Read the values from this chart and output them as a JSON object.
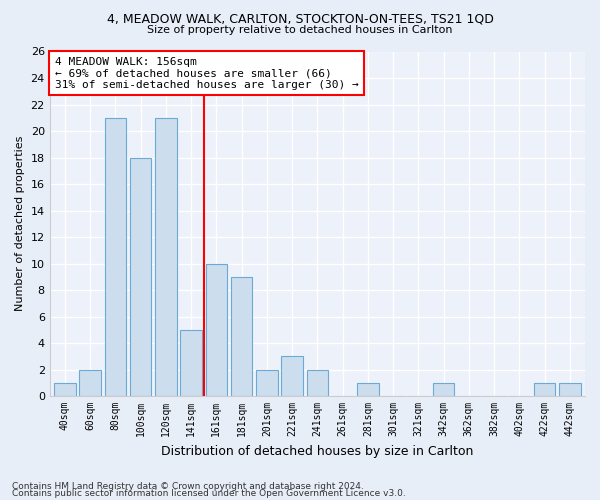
{
  "title1": "4, MEADOW WALK, CARLTON, STOCKTON-ON-TEES, TS21 1QD",
  "title2": "Size of property relative to detached houses in Carlton",
  "xlabel": "Distribution of detached houses by size in Carlton",
  "ylabel": "Number of detached properties",
  "bar_labels": [
    "40sqm",
    "60sqm",
    "80sqm",
    "100sqm",
    "120sqm",
    "141sqm",
    "161sqm",
    "181sqm",
    "201sqm",
    "221sqm",
    "241sqm",
    "261sqm",
    "281sqm",
    "301sqm",
    "321sqm",
    "342sqm",
    "362sqm",
    "382sqm",
    "402sqm",
    "422sqm",
    "442sqm"
  ],
  "bar_values": [
    1,
    2,
    21,
    18,
    21,
    5,
    10,
    9,
    2,
    3,
    2,
    0,
    1,
    0,
    0,
    1,
    0,
    0,
    0,
    1,
    1
  ],
  "bar_color": "#ccdded",
  "bar_edgecolor": "#6aaad4",
  "red_line_x": 5.5,
  "annotation_text": "4 MEADOW WALK: 156sqm\n← 69% of detached houses are smaller (66)\n31% of semi-detached houses are larger (30) →",
  "ylim": [
    0,
    26
  ],
  "yticks": [
    0,
    2,
    4,
    6,
    8,
    10,
    12,
    14,
    16,
    18,
    20,
    22,
    24,
    26
  ],
  "footer1": "Contains HM Land Registry data © Crown copyright and database right 2024.",
  "footer2": "Contains public sector information licensed under the Open Government Licence v3.0.",
  "bg_color": "#e8eef8",
  "plot_bg_color": "#edf2fa"
}
